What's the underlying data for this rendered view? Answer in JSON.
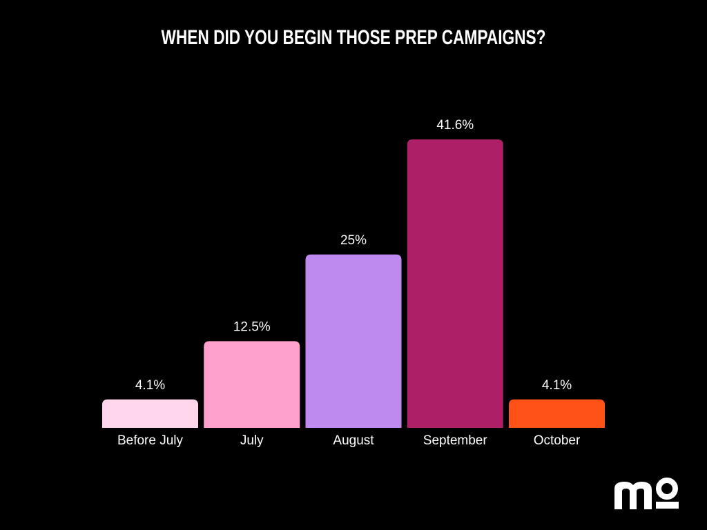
{
  "chart_data": {
    "type": "bar",
    "title": "WHEN DID YOU BEGIN THOSE PREP CAMPAIGNS?",
    "categories": [
      "Before July",
      "July",
      "August",
      "September",
      "October"
    ],
    "values": [
      4.1,
      12.5,
      25,
      41.6,
      4.1
    ],
    "value_labels": [
      "4.1%",
      "12.5%",
      "25%",
      "41.6%",
      "4.1%"
    ],
    "colors": [
      "#ffd6ec",
      "#ffa0cd",
      "#bf8af0",
      "#ad2068",
      "#ff5219"
    ]
  }
}
